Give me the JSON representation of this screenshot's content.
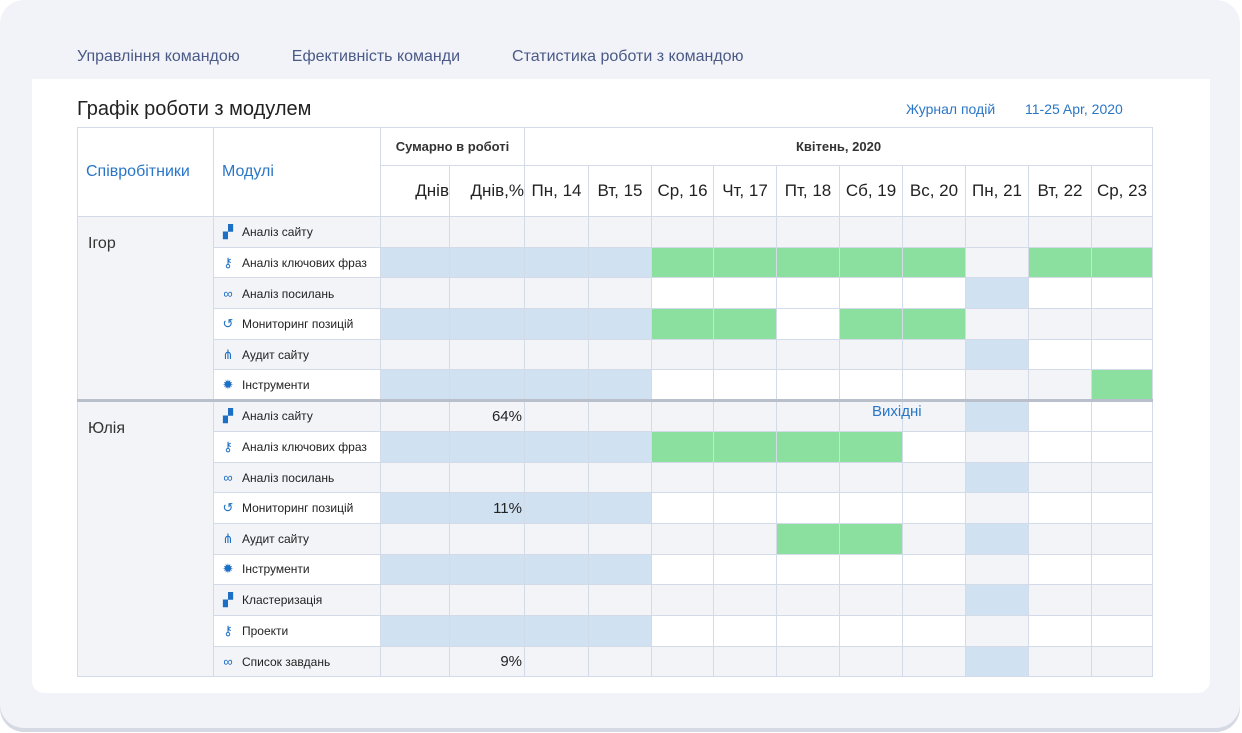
{
  "tabs": [
    "Управління командою",
    "Ефективність команди",
    "Статистика роботи з командою"
  ],
  "title": "Графік роботи з модулем",
  "event_log": "Журнал подій",
  "date_range": "11-25 Apr, 2020",
  "headers": {
    "employees": "Співробітники",
    "modules": "Модулі",
    "summary": "Сумарно в роботі",
    "month": "Квітень, 2020",
    "days_label": "Днів",
    "days_pct_label": "Днів,%",
    "days": [
      "Пн, 14",
      "Вт, 15",
      "Ср, 16",
      "Чт, 17",
      "Пт, 18",
      "Сб, 19",
      "Вс, 20",
      "Пн, 21",
      "Вт, 22",
      "Ср, 23"
    ]
  },
  "weekend_label": "Вихідні",
  "colors": {
    "grey": "#f2f4f8",
    "blue": "#d0e1f1",
    "green": "#8be09f",
    "accent": "#2a76c6"
  },
  "employees": [
    {
      "name": "Ігор",
      "rows": [
        {
          "module": "Аналіз сайту",
          "icon": "chart-icon",
          "pct": "",
          "cells": "gggggggggggg"
        },
        {
          "module": "Аналіз ключових фраз",
          "icon": "key-icon",
          "pct": "",
          "cells": "bbbbGGGGGgGG"
        },
        {
          "module": "Аналіз посилань",
          "icon": "link-icon",
          "pct": "",
          "cells": "ggggwwwwwbww"
        },
        {
          "module": "Мониторинг позицій",
          "icon": "history-icon",
          "pct": "",
          "cells": "bbbbGGwGGggg"
        },
        {
          "module": "Аудит сайту",
          "icon": "sitemap-icon",
          "pct": "",
          "cells": "gggggggggbww"
        },
        {
          "module": "Інструменти",
          "icon": "gear-icon",
          "pct": "",
          "cells": "bbbbwwwwwggG"
        }
      ]
    },
    {
      "name": "Юлія",
      "rows": [
        {
          "module": "Аналіз сайту",
          "icon": "chart-icon",
          "pct": "64%",
          "cells": "gggggggggbww"
        },
        {
          "module": "Аналіз ключових фраз",
          "icon": "key-icon",
          "pct": "",
          "cells": "bbbbGGGGwgww"
        },
        {
          "module": "Аналіз посилань",
          "icon": "link-icon",
          "pct": "",
          "cells": "gggggggggbgg"
        },
        {
          "module": "Мониторинг позицій",
          "icon": "history-icon",
          "pct": "11%",
          "cells": "bbbbwwwwwgww"
        },
        {
          "module": "Аудит сайту",
          "icon": "sitemap-icon",
          "pct": "",
          "cells": "ggggggGGgbgg"
        },
        {
          "module": "Інструменти",
          "icon": "gear-icon",
          "pct": "",
          "cells": "bbbbwwwwwgww"
        },
        {
          "module": "Кластеризація",
          "icon": "chart-icon",
          "pct": "",
          "cells": "gggggggggbgg"
        },
        {
          "module": "Проекти",
          "icon": "key-icon",
          "pct": "",
          "cells": "bbbbwwwwwgww"
        },
        {
          "module": "Список завдань",
          "icon": "link-icon",
          "pct": "9%",
          "cells": "gggggggggbgg"
        }
      ]
    }
  ]
}
